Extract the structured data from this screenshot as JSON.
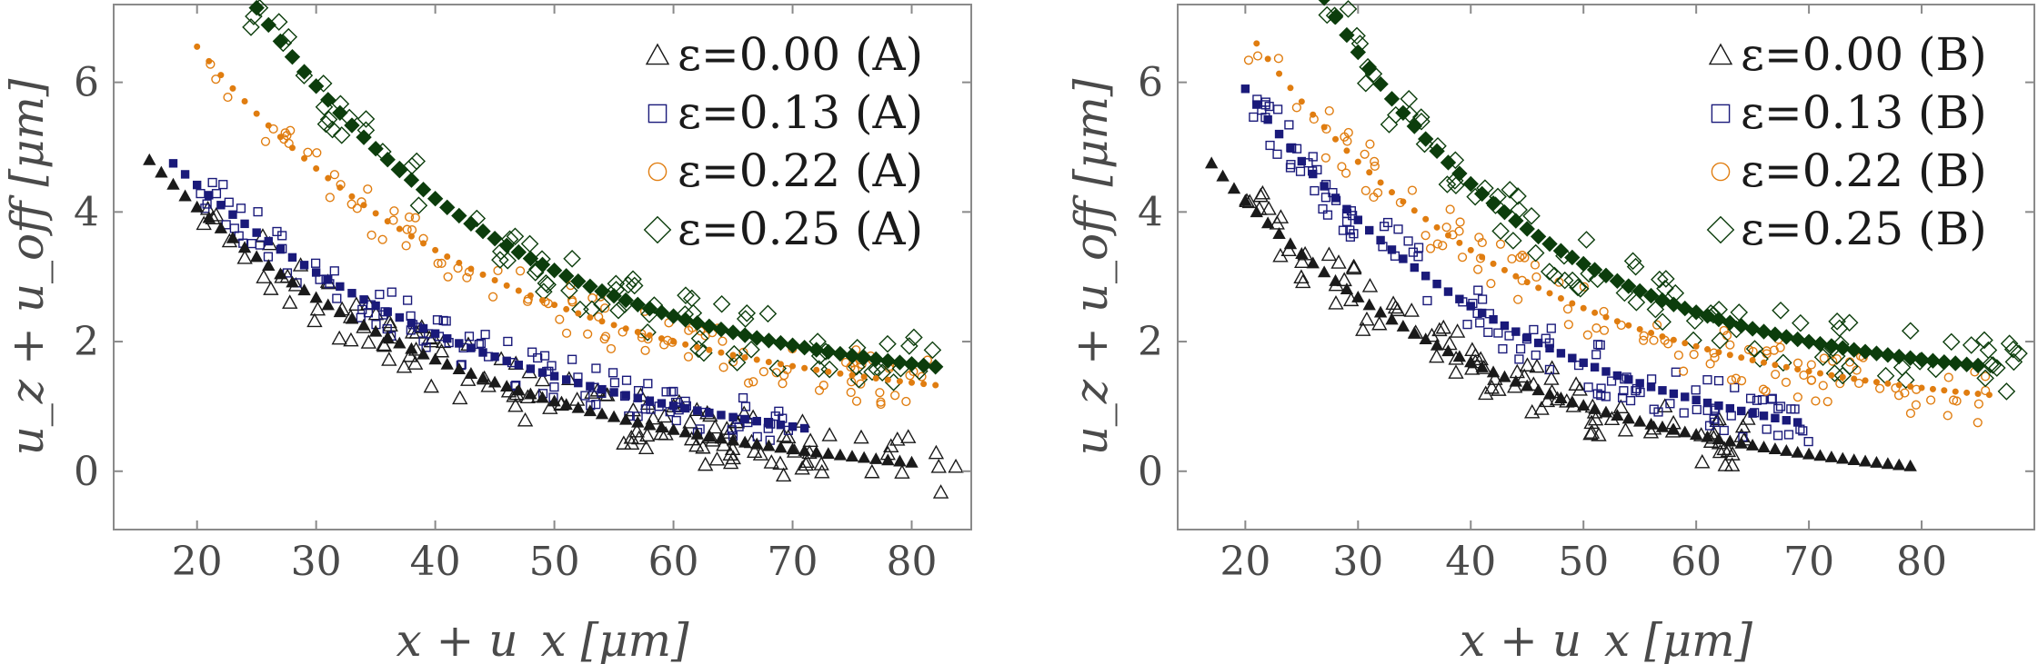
{
  "chart_data": [
    {
      "type": "scatter",
      "panel": "A",
      "xlabel": "x + u_x [μm]",
      "ylabel": "u_z + u_off [μm]",
      "xlim": [
        13,
        85
      ],
      "ylim": [
        -0.9,
        7.2
      ],
      "xticks": [
        "20",
        "30",
        "40",
        "50",
        "60",
        "70",
        "80"
      ],
      "yticks": [
        "0",
        "2",
        "4",
        "6"
      ],
      "legend_position": "top-right",
      "series": [
        {
          "name": "ε=0.00 (A)",
          "marker": "triangle",
          "color": "#1a1a1a",
          "fit": {
            "a": 5.1,
            "k": 0.0385,
            "c": -0.3,
            "x0": 16,
            "x1": 80
          },
          "raw": {
            "x0": 20,
            "x1": 84,
            "n": 140,
            "noise": 0.45
          }
        },
        {
          "name": "ε=0.13 (A)",
          "marker": "square",
          "color": "#1a1a7a",
          "fit": {
            "a": 4.8,
            "k": 0.036,
            "c": -0.05,
            "x0": 18,
            "x1": 71
          },
          "raw": {
            "x0": 20,
            "x1": 70,
            "n": 120,
            "noise": 0.35
          }
        },
        {
          "name": "ε=0.22 (A)",
          "marker": "circle",
          "color": "#e07d10",
          "fit": {
            "a": 5.7,
            "k": 0.04,
            "c": 0.85,
            "x0": 20,
            "x1": 82
          },
          "raw": {
            "x0": 21,
            "x1": 82,
            "n": 110,
            "noise": 0.4
          }
        },
        {
          "name": "ε=0.25 (A)",
          "marker": "diamond",
          "color": "#0c3d0c",
          "fit": {
            "a": 6.0,
            "k": 0.045,
            "c": 1.15,
            "x0": 25,
            "x1": 82
          },
          "raw": {
            "x0": 20,
            "x1": 82,
            "n": 95,
            "noise": 0.45
          }
        }
      ]
    },
    {
      "type": "scatter",
      "panel": "B",
      "xlabel": "x + u_x [μm]",
      "ylabel": "u_z + u_off [μm]",
      "xlim": [
        14,
        90
      ],
      "ylim": [
        -0.9,
        7.2
      ],
      "xticks": [
        "20",
        "30",
        "40",
        "50",
        "60",
        "70",
        "80"
      ],
      "yticks": [
        "0",
        "2",
        "4",
        "6"
      ],
      "legend_position": "top-right",
      "series": [
        {
          "name": "ε=0.00 (B)",
          "marker": "triangle",
          "color": "#1a1a1a",
          "fit": {
            "a": 5.1,
            "k": 0.04,
            "c": -0.35,
            "x0": 17,
            "x1": 79
          },
          "raw": {
            "x0": 20,
            "x1": 66,
            "n": 100,
            "noise": 0.45
          }
        },
        {
          "name": "ε=0.13 (B)",
          "marker": "square",
          "color": "#1a1a7a",
          "fit": {
            "a": 5.9,
            "k": 0.042,
            "c": 0.0,
            "x0": 20,
            "x1": 69
          },
          "raw": {
            "x0": 20,
            "x1": 70,
            "n": 120,
            "noise": 0.4
          }
        },
        {
          "name": "ε=0.22 (B)",
          "marker": "circle",
          "color": "#e07d10",
          "fit": {
            "a": 5.8,
            "k": 0.042,
            "c": 0.8,
            "x0": 21,
            "x1": 86
          },
          "raw": {
            "x0": 20,
            "x1": 86,
            "n": 120,
            "noise": 0.45
          }
        },
        {
          "name": "ε=0.25 (B)",
          "marker": "diamond",
          "color": "#0c3d0c",
          "fit": {
            "a": 6.0,
            "k": 0.05,
            "c": 1.3,
            "x0": 27,
            "x1": 85
          },
          "raw": {
            "x0": 26,
            "x1": 90,
            "n": 95,
            "noise": 0.45
          }
        }
      ]
    }
  ]
}
